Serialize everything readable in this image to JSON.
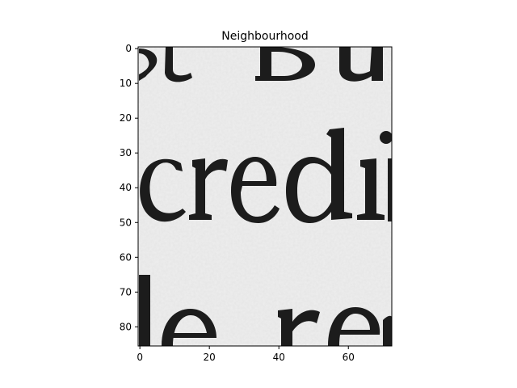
{
  "chart_data": {
    "type": "heatmap",
    "title": "Neighbourhood",
    "xlabel": "",
    "ylabel": "",
    "colormap": "gray",
    "image_size": [
      73,
      86
    ],
    "xlim": [
      -0.5,
      72.5
    ],
    "ylim": [
      85.5,
      -0.5
    ],
    "y_axis_inverted": true,
    "grid": false,
    "legend": "none",
    "x_ticks": [
      0,
      20,
      40,
      60
    ],
    "x_tick_labels": [
      "0",
      "20",
      "40",
      "60"
    ],
    "y_ticks": [
      0,
      10,
      20,
      30,
      40,
      50,
      60,
      70,
      80
    ],
    "y_tick_labels": [
      "0",
      "10",
      "20",
      "30",
      "40",
      "50",
      "60",
      "70",
      "80"
    ],
    "image_content": "scanned serif text fragment rows",
    "colors": {
      "paper": "#eeeeee",
      "ink": "#1c1c1c",
      "frame": "#000000"
    }
  }
}
